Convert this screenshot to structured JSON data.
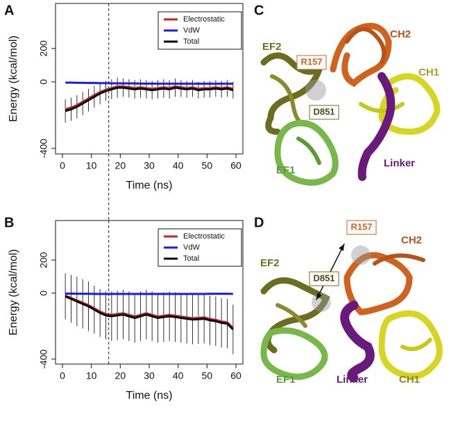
{
  "panel_labels": [
    "A",
    "B",
    "C",
    "D"
  ],
  "chart_data": [
    {
      "type": "line",
      "xlabel": "Time (ns)",
      "ylabel": "Energy (kcal/mol)",
      "x": [
        1,
        3,
        5,
        7,
        9,
        11,
        13,
        15,
        17,
        19,
        21,
        23,
        25,
        27,
        29,
        31,
        33,
        35,
        37,
        39,
        41,
        43,
        45,
        47,
        49,
        51,
        53,
        55,
        57,
        59
      ],
      "series": [
        {
          "name": "Electrostatic",
          "color": "#cc2222",
          "values": [
            -165,
            -155,
            -140,
            -120,
            -100,
            -80,
            -62,
            -48,
            -38,
            -28,
            -28,
            -32,
            -38,
            -33,
            -38,
            -42,
            -38,
            -33,
            -38,
            -28,
            -33,
            -38,
            -33,
            -42,
            -38,
            -38,
            -33,
            -38,
            -33,
            -42
          ]
        },
        {
          "name": "VdW",
          "color": "#1a1aee",
          "values": [
            -5,
            -5,
            -6,
            -6,
            -7,
            -7,
            -8,
            -8,
            -9,
            -9,
            -10,
            -10,
            -10,
            -11,
            -11,
            -11,
            -12,
            -12,
            -12,
            -12,
            -12,
            -12,
            -12,
            -12,
            -12,
            -12,
            -12,
            -12,
            -12,
            -12
          ]
        },
        {
          "name": "Total",
          "color": "#000000",
          "values": [
            -175,
            -165,
            -150,
            -130,
            -110,
            -90,
            -70,
            -55,
            -45,
            -35,
            -35,
            -40,
            -45,
            -40,
            -45,
            -50,
            -45,
            -40,
            -45,
            -35,
            -40,
            -45,
            -40,
            -50,
            -45,
            -45,
            -40,
            -45,
            -40,
            -50
          ],
          "errors": [
            70,
            70,
            70,
            70,
            68,
            65,
            65,
            60,
            60,
            60,
            55,
            55,
            55,
            55,
            55,
            55,
            55,
            55,
            55,
            55,
            50,
            50,
            50,
            50,
            50,
            50,
            50,
            50,
            50,
            50
          ]
        }
      ],
      "xlim": [
        -2.4,
        62.4
      ],
      "xticks": [
        0,
        10,
        20,
        30,
        40,
        50,
        60
      ],
      "ylim": [
        -433,
        470
      ],
      "yticks": [
        -400,
        0,
        200
      ],
      "vline": 16,
      "legend": "topright"
    },
    {
      "type": "line",
      "xlabel": "Time (ns)",
      "ylabel": "Energy (kcal/mol)",
      "x": [
        1,
        3,
        5,
        7,
        9,
        11,
        13,
        15,
        17,
        19,
        21,
        23,
        25,
        27,
        29,
        31,
        33,
        35,
        37,
        39,
        41,
        43,
        45,
        47,
        49,
        51,
        53,
        55,
        57,
        59
      ],
      "series": [
        {
          "name": "Electrostatic",
          "color": "#cc2222",
          "values": [
            -15,
            -30,
            -44,
            -58,
            -73,
            -92,
            -112,
            -127,
            -132,
            -127,
            -122,
            -132,
            -142,
            -132,
            -122,
            -132,
            -142,
            -137,
            -132,
            -137,
            -142,
            -147,
            -152,
            -150,
            -147,
            -157,
            -162,
            -172,
            -177,
            -212
          ]
        },
        {
          "name": "VdW",
          "color": "#1a1aee",
          "values": [
            -3,
            -3,
            -4,
            -4,
            -4,
            -5,
            -5,
            -5,
            -5,
            -5,
            -5,
            -5,
            -5,
            -5,
            -5,
            -5,
            -5,
            -5,
            -5,
            -5,
            -5,
            -5,
            -5,
            -5,
            -5,
            -4,
            -4,
            -4,
            -4,
            -5
          ]
        },
        {
          "name": "Total",
          "color": "#000000",
          "values": [
            -20,
            -35,
            -50,
            -65,
            -80,
            -100,
            -120,
            -135,
            -140,
            -135,
            -130,
            -140,
            -150,
            -140,
            -130,
            -140,
            -150,
            -145,
            -140,
            -145,
            -150,
            -155,
            -160,
            -158,
            -155,
            -165,
            -170,
            -180,
            -185,
            -220
          ],
          "errors": [
            140,
            145,
            150,
            150,
            150,
            145,
            145,
            145,
            150,
            150,
            150,
            150,
            150,
            150,
            150,
            150,
            150,
            150,
            150,
            150,
            150,
            150,
            150,
            150,
            150,
            150,
            150,
            150,
            150,
            150
          ]
        }
      ],
      "xlim": [
        -2.4,
        62.4
      ],
      "xticks": [
        0,
        10,
        20,
        30,
        40,
        50,
        60
      ],
      "ylim": [
        -430,
        440
      ],
      "yticks": [
        -400,
        0,
        200
      ],
      "vline": 16,
      "legend": "topright"
    }
  ],
  "structures": [
    {
      "labels": [
        "EF2",
        "R157",
        "CH2",
        "CH1",
        "D851",
        "Linker",
        "EF1"
      ]
    },
    {
      "labels": [
        "R157",
        "CH2",
        "EF2",
        "D851",
        "EF1",
        "Linker",
        "CH1"
      ]
    }
  ]
}
